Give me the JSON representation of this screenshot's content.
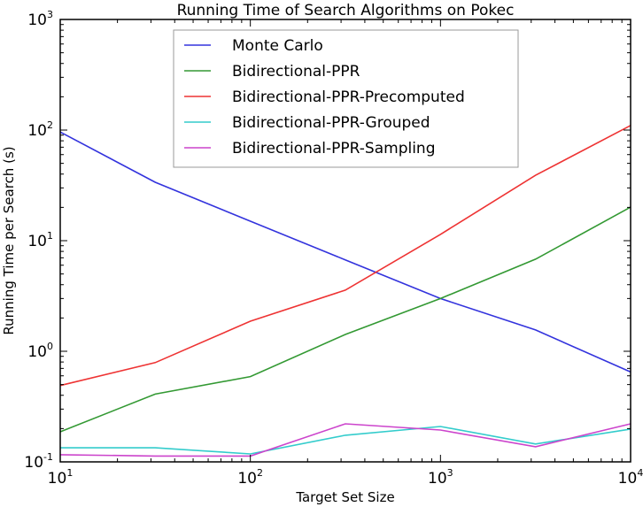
{
  "chart_data": {
    "type": "line",
    "title": "Running Time of Search Algorithms on Pokec",
    "xlabel": "Target Set Size",
    "ylabel": "Running Time per Search (s)",
    "xscale": "log",
    "yscale": "log",
    "xlim": [
      10,
      10000
    ],
    "ylim": [
      0.1,
      1000
    ],
    "grid": false,
    "legend_position": "upper center",
    "x_ticks": [
      {
        "base": "10",
        "exp": "1",
        "value": 10
      },
      {
        "base": "10",
        "exp": "2",
        "value": 100
      },
      {
        "base": "10",
        "exp": "3",
        "value": 1000
      },
      {
        "base": "10",
        "exp": "4",
        "value": 10000
      }
    ],
    "y_ticks": [
      {
        "base": "10",
        "exp": "-1",
        "value": 0.1
      },
      {
        "base": "10",
        "exp": "0",
        "value": 1
      },
      {
        "base": "10",
        "exp": "1",
        "value": 10
      },
      {
        "base": "10",
        "exp": "2",
        "value": 100
      },
      {
        "base": "10",
        "exp": "3",
        "value": 1000
      }
    ],
    "x": [
      10,
      31.6,
      100,
      316,
      1000,
      3162,
      10000
    ],
    "series": [
      {
        "name": "Monte Carlo",
        "color": "#3333dd",
        "values": [
          96,
          33.7,
          15,
          6.7,
          3.0,
          1.56,
          0.65
        ]
      },
      {
        "name": "Bidirectional-PPR",
        "color": "#339933",
        "values": [
          0.187,
          0.41,
          0.59,
          1.42,
          3.0,
          6.8,
          20.1
        ]
      },
      {
        "name": "Bidirectional-PPR-Precomputed",
        "color": "#ee3333",
        "values": [
          0.49,
          0.79,
          1.87,
          3.57,
          11.4,
          39,
          110
        ]
      },
      {
        "name": "Bidirectional-PPR-Grouped",
        "color": "#33cccc",
        "values": [
          0.134,
          0.134,
          0.118,
          0.174,
          0.209,
          0.145,
          0.198
        ]
      },
      {
        "name": "Bidirectional-PPR-Sampling",
        "color": "#cc44cc",
        "values": [
          0.116,
          0.113,
          0.113,
          0.221,
          0.194,
          0.137,
          0.221
        ]
      }
    ]
  }
}
